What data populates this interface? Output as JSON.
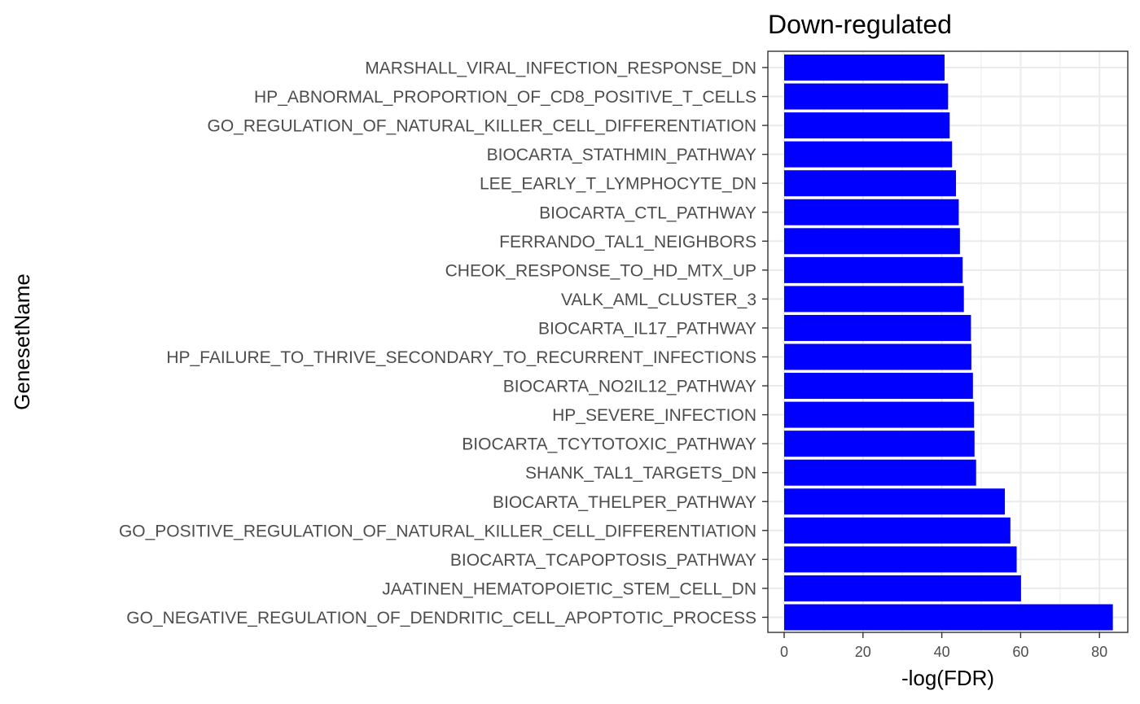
{
  "chart_data": {
    "type": "bar",
    "orientation": "horizontal",
    "title": "Down-regulated",
    "xlabel": "-log(FDR)",
    "ylabel": "GenesetName",
    "xlim": [
      0,
      87.5
    ],
    "xticks": [
      0,
      20,
      40,
      60,
      80
    ],
    "grid": true,
    "bar_color": "#0000FF",
    "categories": [
      "MARSHALL_VIRAL_INFECTION_RESPONSE_DN",
      "HP_ABNORMAL_PROPORTION_OF_CD8_POSITIVE_T_CELLS",
      "GO_REGULATION_OF_NATURAL_KILLER_CELL_DIFFERENTIATION",
      "BIOCARTA_STATHMIN_PATHWAY",
      "LEE_EARLY_T_LYMPHOCYTE_DN",
      "BIOCARTA_CTL_PATHWAY",
      "FERRANDO_TAL1_NEIGHBORS",
      "CHEOK_RESPONSE_TO_HD_MTX_UP",
      "VALK_AML_CLUSTER_3",
      "BIOCARTA_IL17_PATHWAY",
      "HP_FAILURE_TO_THRIVE_SECONDARY_TO_RECURRENT_INFECTIONS",
      "BIOCARTA_NO2IL12_PATHWAY",
      "HP_SEVERE_INFECTION",
      "BIOCARTA_TCYTOTOXIC_PATHWAY",
      "SHANK_TAL1_TARGETS_DN",
      "BIOCARTA_THELPER_PATHWAY",
      "GO_POSITIVE_REGULATION_OF_NATURAL_KILLER_CELL_DIFFERENTIATION",
      "BIOCARTA_TCAPOPTOSIS_PATHWAY",
      "JAATINEN_HEMATOPOIETIC_STEM_CELL_DN",
      "GO_NEGATIVE_REGULATION_OF_DENDRITIC_CELL_APOPTOTIC_PROCESS"
    ],
    "values": [
      40.7,
      41.6,
      42.0,
      42.6,
      43.6,
      44.3,
      44.6,
      45.3,
      45.6,
      47.4,
      47.5,
      47.9,
      48.2,
      48.3,
      48.7,
      56.0,
      57.4,
      59.0,
      60.1,
      83.4
    ]
  }
}
